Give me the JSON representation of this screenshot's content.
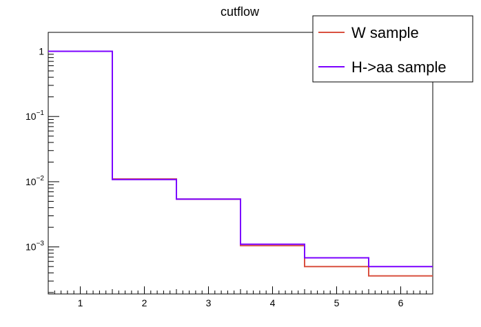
{
  "chart_data": {
    "type": "line",
    "title": "cutflow",
    "xlabel": "",
    "ylabel": "",
    "x_bin_edges": [
      0.5,
      1.5,
      2.5,
      3.5,
      4.5,
      5.5,
      6.5
    ],
    "xlim": [
      0.5,
      6.5
    ],
    "x_tick_labels": [
      "1",
      "2",
      "3",
      "4",
      "5",
      "6"
    ],
    "ylim": [
      0.00019,
      1.95
    ],
    "y_scale": "log",
    "y_tick_labels": [
      {
        "base": "1",
        "exp": ""
      },
      {
        "base": "10",
        "exp": "−1"
      },
      {
        "base": "10",
        "exp": "−2"
      },
      {
        "base": "10",
        "exp": "−3"
      }
    ],
    "grid": false,
    "legend_position": "top-right",
    "series": [
      {
        "name": "W sample",
        "color": "#d9503f",
        "values": [
          1.0,
          0.011,
          0.0054,
          0.00105,
          0.0005,
          0.00036
        ]
      },
      {
        "name": "H->aa sample",
        "color": "#7a00ff",
        "values": [
          1.0,
          0.0108,
          0.0054,
          0.0011,
          0.00068,
          0.0005
        ]
      }
    ]
  }
}
